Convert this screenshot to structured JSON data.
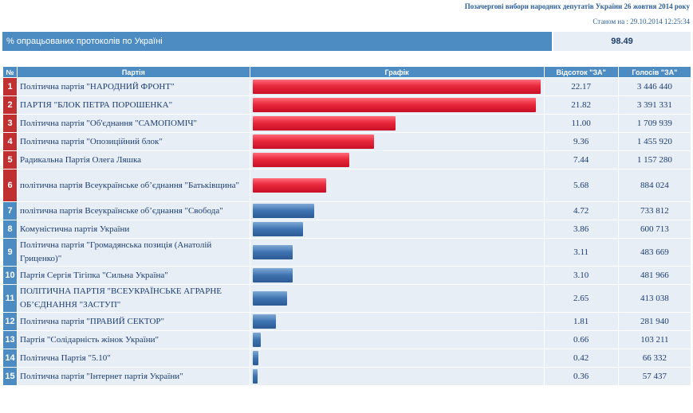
{
  "header": {
    "title": "Позачергові вибори народних депутатів України 26 жовтня 2014 року",
    "date": "Станом на : 29.10.2014 12:25:34"
  },
  "summary": {
    "label": "% опрацьованих протоколів по Україні",
    "value": "98.49"
  },
  "table": {
    "headers": [
      "№",
      "Партія",
      "Графік",
      "Відсоток \"ЗА\"",
      "Голосів \"ЗА\""
    ]
  },
  "colors": {
    "red_bar": "#e8283c",
    "blue_bar": "#3d72b0",
    "header_blue": "#4d8cc3",
    "num_red": "#c03030"
  },
  "chart_data": {
    "type": "bar",
    "title": "",
    "xlabel": "",
    "ylabel": "",
    "xlim": [
      0,
      22.17
    ],
    "categories": [
      "Політична партія \"НАРОДНИЙ ФРОНТ\"",
      "ПАРТІЯ \"БЛОК ПЕТРА ПОРОШЕНКА\"",
      "Політична партія \"Об'єднання \"САМОПОМІЧ\"",
      "Політична партія \"Опозиційний блок\"",
      "Радикальна Партія Олега Ляшка",
      "політична партія Всеукраїнське об’єднання \"Батьківщина\"",
      "політична партія Всеукраїнське об’єднання \"Свобода\"",
      "Комуністична партія України",
      "Політична партія \"Громадянська позиція (Анатолій Гриценко)\"",
      "Партія Сергія Тігіпка \"Сильна Україна\"",
      "ПОЛІТИЧНА ПАРТІЯ \"ВСЕУКРАЇНСЬКЕ АГРАРНЕ ОБ’ЄДНАННЯ \"ЗАСТУП\"",
      "Політична партія \"ПРАВИЙ СЕКТОР\"",
      "Партія \"Солідарність жінок України\"",
      "Політична Партія \"5.10\"",
      "Політична партія \"Інтернет партія України\""
    ],
    "numbers": [
      "1",
      "2",
      "3",
      "4",
      "5",
      "6",
      "7",
      "8",
      "9",
      "10",
      "11",
      "12",
      "13",
      "14",
      "15"
    ],
    "values": [
      22.17,
      21.82,
      11.0,
      9.36,
      7.44,
      5.68,
      4.72,
      3.86,
      3.11,
      3.1,
      2.65,
      1.81,
      0.66,
      0.42,
      0.36
    ],
    "percent_labels": [
      "22.17",
      "21.82",
      "11.00",
      "9.36",
      "7.44",
      "5.68",
      "4.72",
      "3.86",
      "3.11",
      "3.10",
      "2.65",
      "1.81",
      "0.66",
      "0.42",
      "0.36"
    ],
    "votes": [
      "3 446 440",
      "3 391 331",
      "1 709 939",
      "1 455 920",
      "1 157 280",
      "884 024",
      "733 812",
      "600 713",
      "483 669",
      "481 966",
      "413 038",
      "281 940",
      "103 211",
      "66 332",
      "57 437"
    ],
    "passed_threshold": [
      true,
      true,
      true,
      true,
      true,
      true,
      false,
      false,
      false,
      false,
      false,
      false,
      false,
      false,
      false
    ]
  }
}
